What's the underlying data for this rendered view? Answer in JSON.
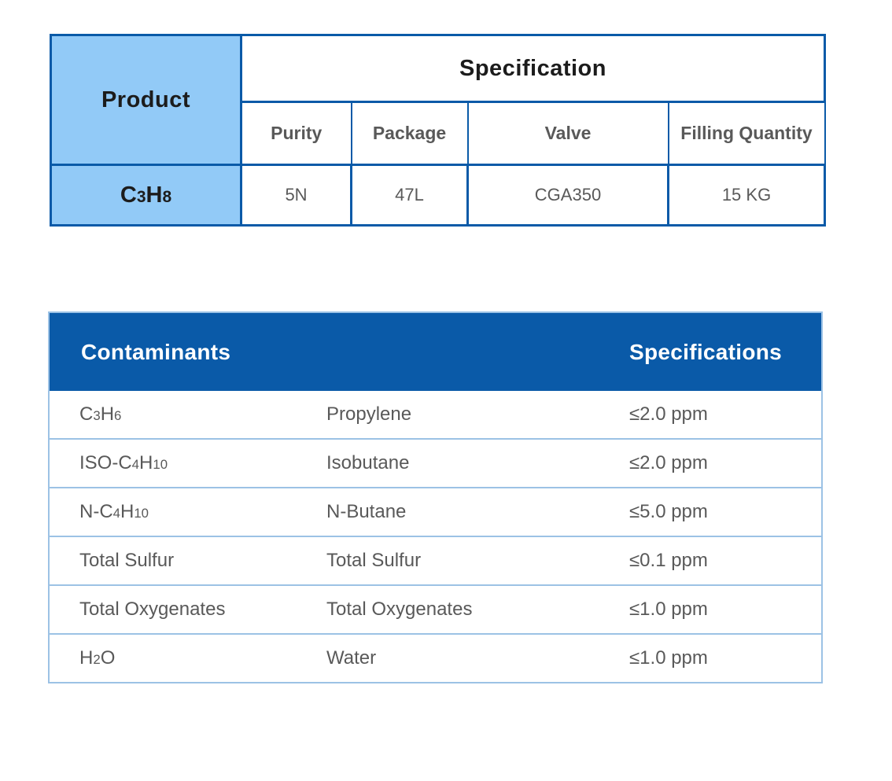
{
  "colors": {
    "dark_blue": "#0A5AA8",
    "light_blue_cell": "#92CAF7",
    "light_blue_border": "#9CC2E5",
    "text_black": "#1C1C1C",
    "text_gray": "#595959",
    "header_text": "#FFFFFF"
  },
  "product_table": {
    "product_header": "Product",
    "spec_header": "Specification",
    "sub_headers": [
      "Purity",
      "Package",
      "Valve",
      "Filling Quantity"
    ],
    "product_formula": "C{3}H{8}",
    "values": {
      "purity": "5N",
      "package": "47L",
      "valve": "CGA350",
      "filling_quantity": "15 KG"
    }
  },
  "contaminants_table": {
    "header": {
      "contaminants": "Contaminants",
      "specifications": "Specifications"
    },
    "rows": [
      {
        "formula": "C{3}H{6}",
        "name": "Propylene",
        "spec": "≤2.0 ppm"
      },
      {
        "formula": "ISO-C{4}H{10}",
        "name": "Isobutane",
        "spec": "≤2.0 ppm"
      },
      {
        "formula": "N-C{4}H{10}",
        "name": "N-Butane",
        "spec": "≤5.0 ppm"
      },
      {
        "formula": "Total Sulfur",
        "name": "Total Sulfur",
        "spec": "≤0.1 ppm"
      },
      {
        "formula": "Total Oxygenates",
        "name": "Total Oxygenates",
        "spec": "≤1.0 ppm"
      },
      {
        "formula": "H{2}O",
        "name": "Water",
        "spec": "≤1.0 ppm"
      }
    ]
  }
}
